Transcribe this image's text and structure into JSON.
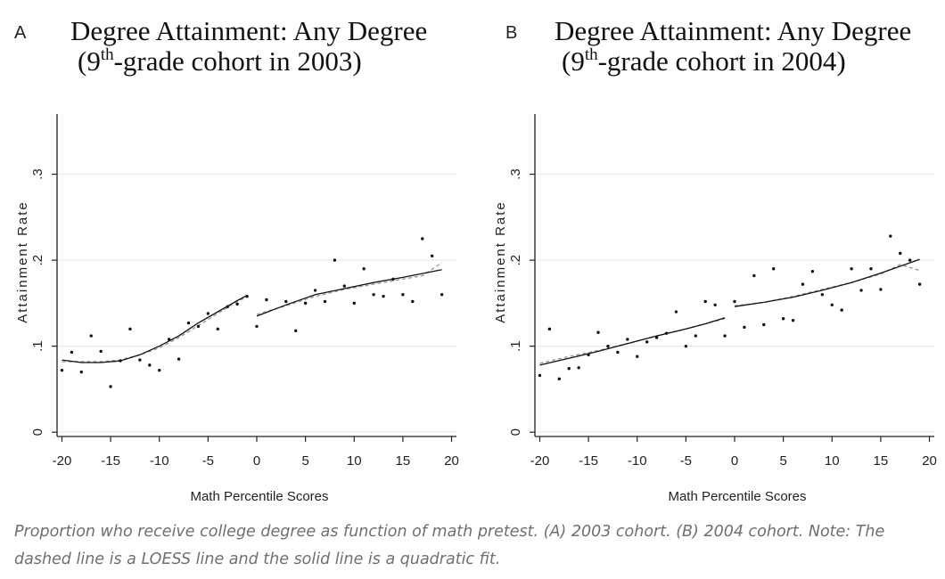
{
  "caption": "Proportion who receive college degree as function of math pretest. (A) 2003 cohort. (B) 2004 cohort. Note: The dashed line is a LOESS line and the solid line is a quadratic fit.",
  "colors": {
    "points": "#111111",
    "fit": "#111111",
    "loess": "#9a9a9a",
    "grid": "#e3e3e3",
    "axis": "#222222"
  },
  "chart_data": [
    {
      "type": "scatter",
      "panel": "A",
      "title_line1": "Degree Attainment: Any Degree",
      "title_pre": "(9",
      "title_sup": "th",
      "title_post": "-grade cohort in 2003)",
      "xlabel": "Math Percentile Scores",
      "ylabel": "Attainment Rate",
      "xlim": [
        -20.5,
        20.5
      ],
      "ylim": [
        -0.005,
        0.37
      ],
      "xticks": [
        -20,
        -15,
        -10,
        -5,
        0,
        5,
        10,
        15,
        20
      ],
      "yticks": [
        0,
        0.1,
        0.2,
        0.3
      ],
      "ytick_labels": [
        "0",
        ".1",
        ".2",
        ".3"
      ],
      "points": [
        [
          -20,
          0.072
        ],
        [
          -19,
          0.093
        ],
        [
          -18,
          0.07
        ],
        [
          -17,
          0.112
        ],
        [
          -16,
          0.094
        ],
        [
          -15,
          0.053
        ],
        [
          -14,
          0.083
        ],
        [
          -13,
          0.12
        ],
        [
          -12,
          0.084
        ],
        [
          -11,
          0.078
        ],
        [
          -10,
          0.072
        ],
        [
          -9,
          0.108
        ],
        [
          -8,
          0.085
        ],
        [
          -7,
          0.127
        ],
        [
          -6,
          0.123
        ],
        [
          -5,
          0.138
        ],
        [
          -4,
          0.12
        ],
        [
          -3,
          0.146
        ],
        [
          -2,
          0.149
        ],
        [
          -1,
          0.158
        ],
        [
          0,
          0.123
        ],
        [
          1,
          0.154
        ],
        [
          3,
          0.152
        ],
        [
          4,
          0.118
        ],
        [
          5,
          0.15
        ],
        [
          6,
          0.165
        ],
        [
          7,
          0.152
        ],
        [
          8,
          0.2
        ],
        [
          9,
          0.17
        ],
        [
          10,
          0.15
        ],
        [
          11,
          0.19
        ],
        [
          12,
          0.16
        ],
        [
          13,
          0.158
        ],
        [
          14,
          0.178
        ],
        [
          15,
          0.16
        ],
        [
          16,
          0.152
        ],
        [
          17,
          0.225
        ],
        [
          18,
          0.205
        ],
        [
          19,
          0.16
        ]
      ],
      "fit_left": [
        [
          -20,
          0.084
        ],
        [
          -18,
          0.081
        ],
        [
          -16,
          0.081
        ],
        [
          -14,
          0.083
        ],
        [
          -12,
          0.09
        ],
        [
          -10,
          0.1
        ],
        [
          -8,
          0.112
        ],
        [
          -6,
          0.127
        ],
        [
          -4,
          0.14
        ],
        [
          -2,
          0.153
        ],
        [
          -1,
          0.159
        ]
      ],
      "fit_right": [
        [
          0,
          0.135
        ],
        [
          3,
          0.148
        ],
        [
          6,
          0.16
        ],
        [
          9,
          0.167
        ],
        [
          12,
          0.174
        ],
        [
          15,
          0.18
        ],
        [
          19,
          0.189
        ]
      ],
      "loess_left": [
        [
          -20,
          0.082
        ],
        [
          -18,
          0.082
        ],
        [
          -16,
          0.082
        ],
        [
          -14,
          0.084
        ],
        [
          -12,
          0.09
        ],
        [
          -10,
          0.098
        ],
        [
          -8,
          0.11
        ],
        [
          -6,
          0.124
        ],
        [
          -4,
          0.138
        ],
        [
          -2,
          0.152
        ],
        [
          -1,
          0.157
        ]
      ],
      "loess_right": [
        [
          0,
          0.137
        ],
        [
          3,
          0.147
        ],
        [
          6,
          0.158
        ],
        [
          9,
          0.166
        ],
        [
          12,
          0.172
        ],
        [
          15,
          0.178
        ],
        [
          17,
          0.182
        ],
        [
          19,
          0.197
        ]
      ]
    },
    {
      "type": "scatter",
      "panel": "B",
      "title_line1": "Degree Attainment: Any Degree",
      "title_pre": "(9",
      "title_sup": "th",
      "title_post": "-grade cohort in 2004)",
      "xlabel": "Math Percentile Scores",
      "ylabel": "Attainment Rate",
      "xlim": [
        -20.5,
        20.5
      ],
      "ylim": [
        -0.005,
        0.37
      ],
      "xticks": [
        -20,
        -15,
        -10,
        -5,
        0,
        5,
        10,
        15,
        20
      ],
      "yticks": [
        0,
        0.1,
        0.2,
        0.3
      ],
      "ytick_labels": [
        "0",
        ".1",
        ".2",
        ".3"
      ],
      "points": [
        [
          -20,
          0.066
        ],
        [
          -19,
          0.12
        ],
        [
          -18,
          0.062
        ],
        [
          -17,
          0.074
        ],
        [
          -16,
          0.075
        ],
        [
          -15,
          0.09
        ],
        [
          -14,
          0.116
        ],
        [
          -13,
          0.1
        ],
        [
          -12,
          0.093
        ],
        [
          -11,
          0.108
        ],
        [
          -10,
          0.088
        ],
        [
          -9,
          0.105
        ],
        [
          -8,
          0.11
        ],
        [
          -7,
          0.115
        ],
        [
          -6,
          0.14
        ],
        [
          -5,
          0.1
        ],
        [
          -4,
          0.112
        ],
        [
          -3,
          0.152
        ],
        [
          -2,
          0.148
        ],
        [
          -1,
          0.112
        ],
        [
          0,
          0.152
        ],
        [
          1,
          0.122
        ],
        [
          2,
          0.182
        ],
        [
          3,
          0.125
        ],
        [
          4,
          0.19
        ],
        [
          5,
          0.132
        ],
        [
          6,
          0.13
        ],
        [
          7,
          0.172
        ],
        [
          8,
          0.187
        ],
        [
          9,
          0.16
        ],
        [
          10,
          0.148
        ],
        [
          11,
          0.142
        ],
        [
          12,
          0.19
        ],
        [
          13,
          0.165
        ],
        [
          14,
          0.19
        ],
        [
          15,
          0.166
        ],
        [
          16,
          0.228
        ],
        [
          17,
          0.208
        ],
        [
          18,
          0.2
        ],
        [
          19,
          0.172
        ]
      ],
      "fit_left": [
        [
          -20,
          0.078
        ],
        [
          -17,
          0.086
        ],
        [
          -14,
          0.094
        ],
        [
          -11,
          0.103
        ],
        [
          -8,
          0.112
        ],
        [
          -5,
          0.12
        ],
        [
          -3,
          0.126
        ],
        [
          -1,
          0.133
        ]
      ],
      "fit_right": [
        [
          0,
          0.146
        ],
        [
          3,
          0.151
        ],
        [
          6,
          0.157
        ],
        [
          9,
          0.165
        ],
        [
          12,
          0.174
        ],
        [
          15,
          0.185
        ],
        [
          19,
          0.201
        ]
      ],
      "loess_left": [
        [
          -20,
          0.08
        ],
        [
          -17,
          0.088
        ],
        [
          -14,
          0.095
        ],
        [
          -11,
          0.103
        ],
        [
          -8,
          0.112
        ],
        [
          -5,
          0.12
        ],
        [
          -3,
          0.126
        ],
        [
          -1,
          0.132
        ]
      ],
      "loess_right": [
        [
          0,
          0.147
        ],
        [
          3,
          0.151
        ],
        [
          6,
          0.158
        ],
        [
          9,
          0.166
        ],
        [
          12,
          0.174
        ],
        [
          15,
          0.184
        ],
        [
          17,
          0.195
        ],
        [
          19,
          0.188
        ]
      ]
    }
  ]
}
